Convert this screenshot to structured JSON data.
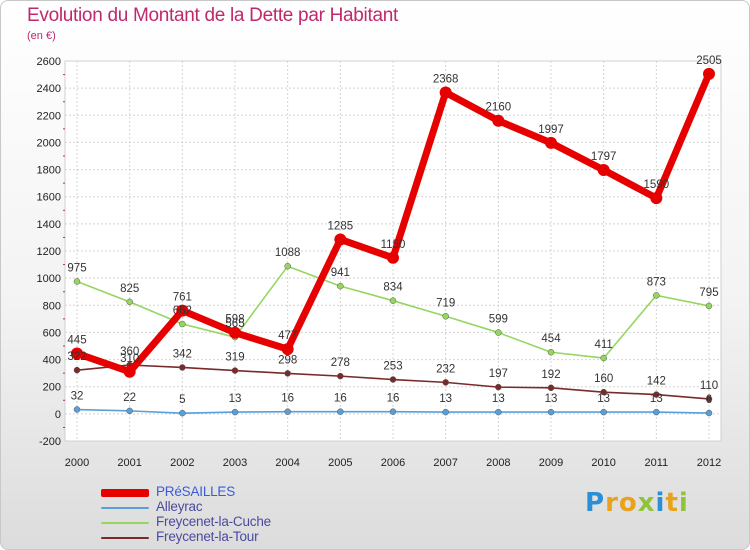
{
  "title": "Evolution du Montant de la Dette par Habitant",
  "subtitle": "(en €)",
  "logo": {
    "text": "Proxiti",
    "letters": [
      {
        "ch": "P",
        "color": "#2a8fd6"
      },
      {
        "ch": "r",
        "color": "#e8a21c"
      },
      {
        "ch": "o",
        "color": "#e8a21c"
      },
      {
        "ch": "x",
        "color": "#8fc43a"
      },
      {
        "ch": "i",
        "color": "#2a8fd6"
      },
      {
        "ch": "t",
        "color": "#e8a21c"
      },
      {
        "ch": "i",
        "color": "#8fc43a"
      }
    ]
  },
  "chart_data": {
    "type": "line",
    "title": "Evolution du Montant de la Dette par Habitant",
    "subtitle": "(en €)",
    "x": [
      "2000",
      "2001",
      "2002",
      "2003",
      "2004",
      "2005",
      "2006",
      "2007",
      "2008",
      "2009",
      "2010",
      "2011",
      "2012"
    ],
    "ylim": [
      -200,
      2600
    ],
    "yticks": [
      "-200",
      "0",
      "200",
      "400",
      "600",
      "800",
      "1000",
      "1200",
      "1400",
      "1600",
      "1800",
      "2000",
      "2200",
      "2400",
      "2600"
    ],
    "grid": true,
    "legend_position": "bottom-left",
    "series": [
      {
        "name": "PRéSAILLES",
        "color": "#e60000",
        "values": [
          445,
          310,
          761,
          598,
          477,
          1285,
          1150,
          2368,
          2160,
          1997,
          1797,
          1590,
          2505
        ],
        "labels": [
          "445",
          "310",
          "761",
          "598",
          "477",
          "1285",
          "1150",
          "2368",
          "2160",
          "1997",
          "1797",
          "1590",
          "2505"
        ],
        "emphasis": true
      },
      {
        "name": "Alleyrac",
        "color": "#5aa0d8",
        "values": [
          32,
          22,
          5,
          13,
          16,
          16,
          16,
          13,
          13,
          13,
          13,
          13,
          6
        ],
        "labels": [
          "32",
          "22",
          "5",
          "13",
          "16",
          "16",
          "16",
          "13",
          "13",
          "13",
          "13",
          "13",
          "6"
        ]
      },
      {
        "name": "Freycenet-la-Cuche",
        "color": "#95d660",
        "values": [
          975,
          825,
          662,
          565,
          1088,
          941,
          834,
          719,
          599,
          454,
          411,
          873,
          795
        ],
        "labels": [
          "975",
          "825",
          "662",
          "565",
          "1088",
          "941",
          "834",
          "719",
          "599",
          "454",
          "411",
          "873",
          "795"
        ]
      },
      {
        "name": "Freycenet-la-Tour",
        "color": "#7a2a2a",
        "values": [
          322,
          360,
          342,
          319,
          298,
          278,
          253,
          232,
          197,
          192,
          160,
          142,
          110
        ],
        "labels": [
          "322",
          "360",
          "342",
          "319",
          "298",
          "278",
          "253",
          "232",
          "197",
          "192",
          "160",
          "142",
          "110"
        ]
      }
    ]
  }
}
